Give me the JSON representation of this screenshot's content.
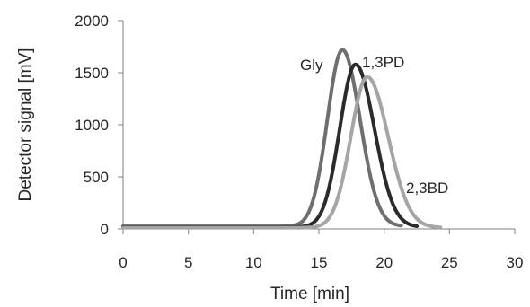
{
  "chart_data": {
    "type": "line",
    "xlabel": "Time [min]",
    "ylabel": "Detector signal [mV]",
    "xlim": [
      0,
      30
    ],
    "ylim": [
      0,
      2000
    ],
    "xticks": [
      "0",
      "5",
      "10",
      "15",
      "20",
      "25",
      "30"
    ],
    "yticks": [
      "0",
      "500",
      "1000",
      "1500",
      "2000"
    ],
    "grid": false,
    "series": [
      {
        "name": "Gly",
        "color": "#6f6f6f",
        "baseline": 25,
        "peak_x": 16.8,
        "peak_y": 1720,
        "sigma_left": 1.15,
        "sigma_right": 1.35,
        "end_x": 21.3
      },
      {
        "name": "1,3PD",
        "color": "#2b2b2b",
        "baseline": 18,
        "peak_x": 17.8,
        "peak_y": 1580,
        "sigma_left": 1.2,
        "sigma_right": 1.45,
        "end_x": 22.5
      },
      {
        "name": "2,3BD",
        "color": "#a5a5a5",
        "baseline": 12,
        "peak_x": 18.7,
        "peak_y": 1460,
        "sigma_left": 1.25,
        "sigma_right": 1.6,
        "end_x": 24.3
      }
    ]
  }
}
